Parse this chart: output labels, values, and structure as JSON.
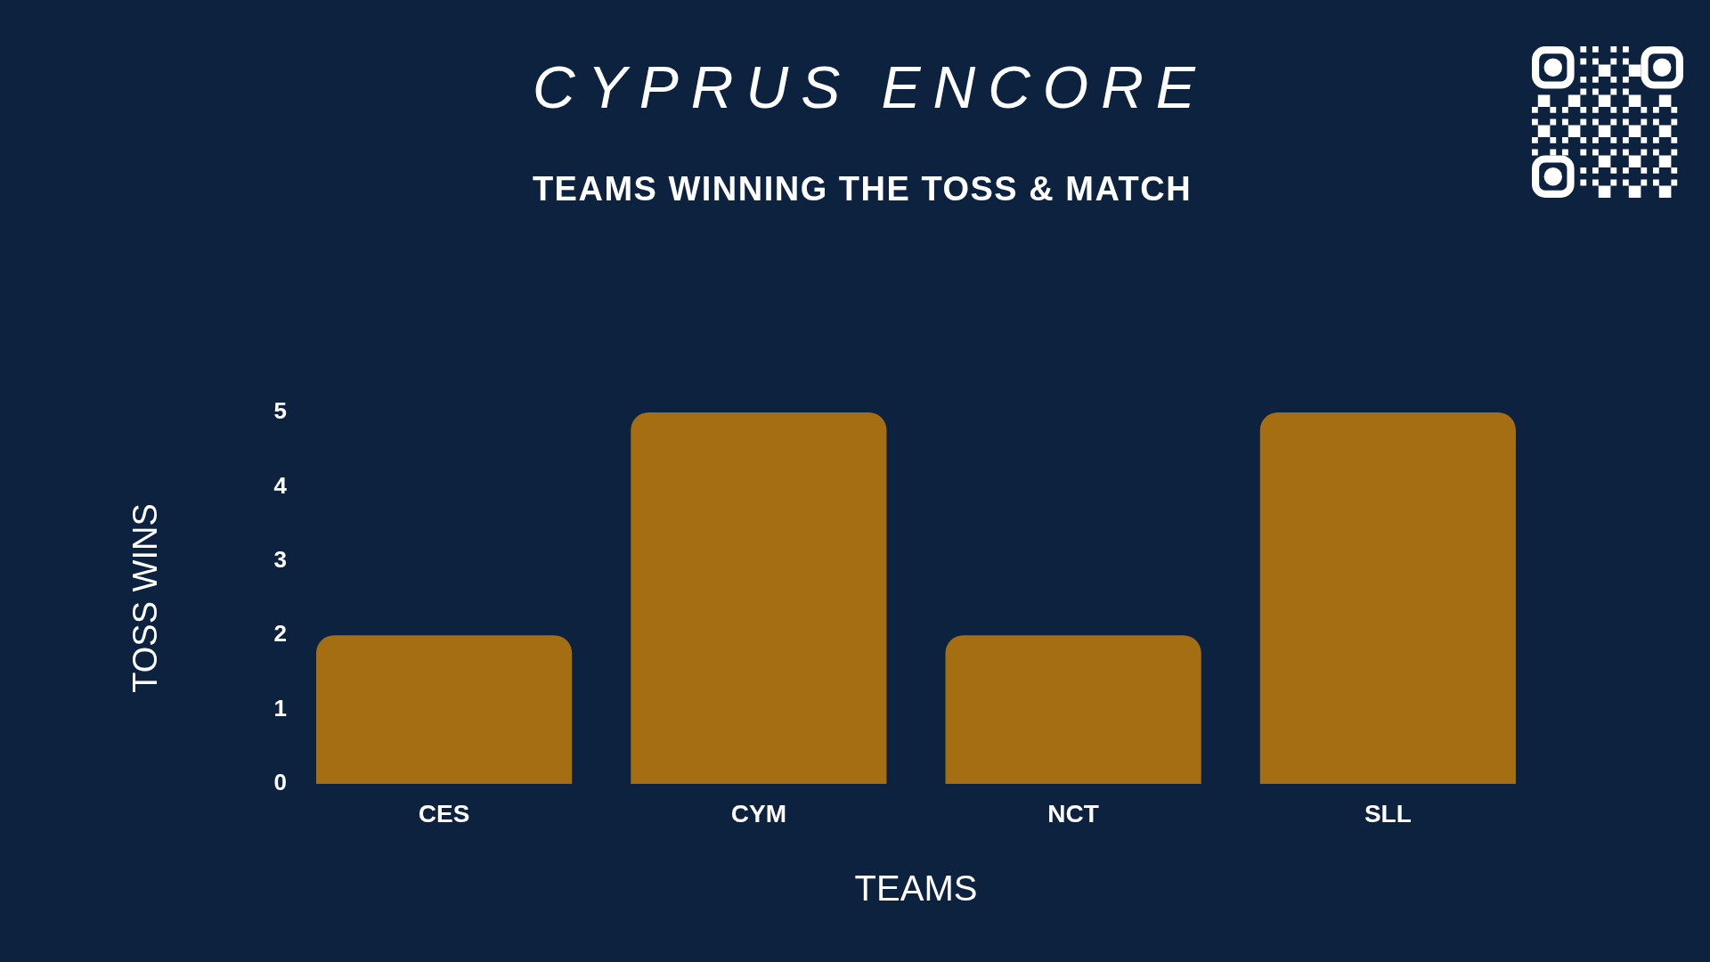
{
  "chart_data": {
    "type": "bar",
    "title": "CYPRUS ENCORE",
    "subtitle": "TEAMS WINNING THE TOSS & MATCH",
    "xlabel": "TEAMS",
    "ylabel": "TOSS WINS",
    "categories": [
      "CES",
      "CYM",
      "NCT",
      "SLL"
    ],
    "values": [
      2,
      5,
      2,
      5
    ],
    "color": "#a66e12",
    "ylim": [
      0,
      5
    ],
    "yticks": [
      0,
      1,
      2,
      3,
      4,
      5
    ]
  }
}
